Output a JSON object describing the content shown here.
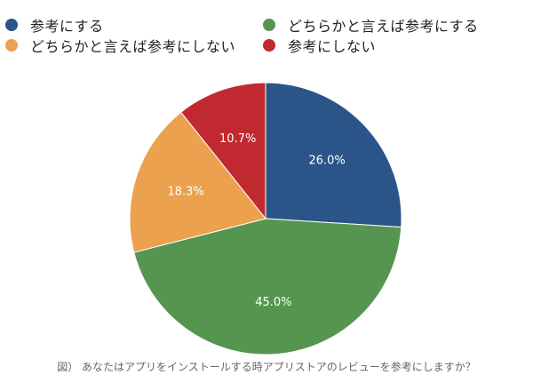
{
  "chart_data": {
    "type": "pie",
    "categories": [
      "参考にする",
      "どちらかと言えば参考にする",
      "どちらかと言えば参考にしない",
      "参考にしない"
    ],
    "values": [
      26.0,
      45.0,
      18.3,
      10.7
    ],
    "value_labels": [
      "26.0%",
      "45.0%",
      "18.3%",
      "10.7%"
    ],
    "colors": [
      "#2B5589",
      "#56954F",
      "#ECA14F",
      "#C12930"
    ],
    "start_angle_deg": 0,
    "direction": "clockwise",
    "legend_position": "top"
  },
  "legend": {
    "items": [
      {
        "label": "参考にする",
        "color": "#2B5589"
      },
      {
        "label": "どちらかと言えば参考にする",
        "color": "#56954F"
      },
      {
        "label": "どちらかと言えば参考にしない",
        "color": "#ECA14F"
      },
      {
        "label": "参考にしない",
        "color": "#C12930"
      }
    ]
  },
  "caption": "図） あなたはアプリをインストールする時アプリストアのレビューを参考にしますか？"
}
